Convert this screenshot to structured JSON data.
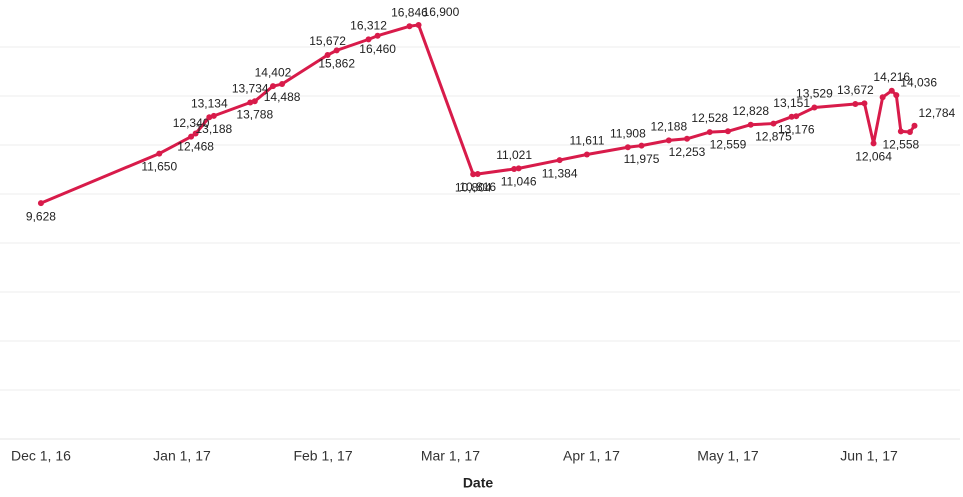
{
  "chart_data": {
    "type": "line",
    "x_label": "Date",
    "color": "#d81b4a",
    "grid": true,
    "x": [
      "2016-12-01",
      "2016-12-27",
      "2017-01-03",
      "2017-01-04",
      "2017-01-07",
      "2017-01-08",
      "2017-01-16",
      "2017-01-17",
      "2017-01-21",
      "2017-01-23",
      "2017-02-02",
      "2017-02-04",
      "2017-02-11",
      "2017-02-13",
      "2017-02-20",
      "2017-02-22",
      "2017-03-06",
      "2017-03-07",
      "2017-03-15",
      "2017-03-16",
      "2017-03-25",
      "2017-03-31",
      "2017-04-09",
      "2017-04-12",
      "2017-04-18",
      "2017-04-22",
      "2017-04-27",
      "2017-05-01",
      "2017-05-06",
      "2017-05-11",
      "2017-05-15",
      "2017-05-16",
      "2017-05-20",
      "2017-05-29",
      "2017-05-31",
      "2017-06-02",
      "2017-06-04",
      "2017-06-06",
      "2017-06-07",
      "2017-06-08",
      "2017-06-10",
      "2017-06-11"
    ],
    "values": [
      9628,
      11650,
      12340,
      12468,
      13134,
      13188,
      13734,
      13788,
      14402,
      14488,
      15672,
      15862,
      16312,
      16460,
      16846,
      16900,
      10804,
      10816,
      11021,
      11046,
      11384,
      11611,
      11908,
      11975,
      12188,
      12253,
      12528,
      12559,
      12828,
      12875,
      13151,
      13176,
      13529,
      13672,
      13700,
      12064,
      13950,
      14216,
      14036,
      12558,
      12530,
      12784
    ],
    "value_labels": [
      "9,628",
      "11,650",
      "12,340",
      "12,468",
      "13,134",
      "13,188",
      "13,734",
      "13,788",
      "14,402",
      "14,488",
      "15,672",
      "15,862",
      "16,312",
      "16,460",
      "16,846",
      "16,900",
      "10,804",
      "10,816",
      "11,021",
      "11,046",
      "11,384",
      "11,611",
      "11,908",
      "11,975",
      "12,188",
      "12,253",
      "12,528",
      "12,559",
      "12,828",
      "12,875",
      "13,151",
      "13,176",
      "13,529",
      "13,672",
      null,
      "12,064",
      null,
      "14,216",
      "14,036",
      "12,558",
      null,
      "12,784"
    ],
    "xlim": [
      "2016-11-22",
      "2017-06-21"
    ],
    "xticks": [
      {
        "value": "2016-12-01",
        "label": "Dec 1, 16"
      },
      {
        "value": "2017-01-01",
        "label": "Jan 1, 17"
      },
      {
        "value": "2017-02-01",
        "label": "Feb 1, 17"
      },
      {
        "value": "2017-03-01",
        "label": "Mar 1, 17"
      },
      {
        "value": "2017-04-01",
        "label": "Apr 1, 17"
      },
      {
        "value": "2017-05-01",
        "label": "May 1, 17"
      },
      {
        "value": "2017-06-01",
        "label": "Jun 1, 17"
      }
    ],
    "ylim": [
      0,
      18000
    ],
    "yticks": [
      0,
      2000,
      4000,
      6000,
      8000,
      10000,
      12000,
      14000,
      16000
    ]
  }
}
